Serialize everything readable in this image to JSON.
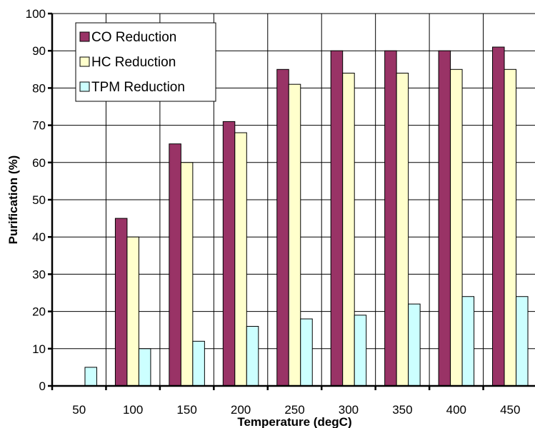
{
  "chart_data": {
    "type": "bar",
    "title": "",
    "xlabel": "Temperature (degC)",
    "ylabel": "Purification (%)",
    "ylim": [
      0,
      100
    ],
    "yticks": [
      0,
      10,
      20,
      30,
      40,
      50,
      60,
      70,
      80,
      90,
      100
    ],
    "categories": [
      "50",
      "100",
      "150",
      "200",
      "250",
      "300",
      "350",
      "400",
      "450"
    ],
    "grid": true,
    "legend_position": "top-left",
    "series": [
      {
        "name": "CO Reduction",
        "color": "#993366",
        "values": [
          0,
          45,
          65,
          71,
          85,
          90,
          90,
          90,
          91
        ]
      },
      {
        "name": "HC Reduction",
        "color": "#FFFFCC",
        "values": [
          0,
          40,
          60,
          68,
          81,
          84,
          84,
          85,
          85
        ]
      },
      {
        "name": "TPM Reduction",
        "color": "#CCFFFF",
        "values": [
          5,
          10,
          12,
          16,
          18,
          19,
          22,
          24,
          24
        ]
      }
    ]
  }
}
